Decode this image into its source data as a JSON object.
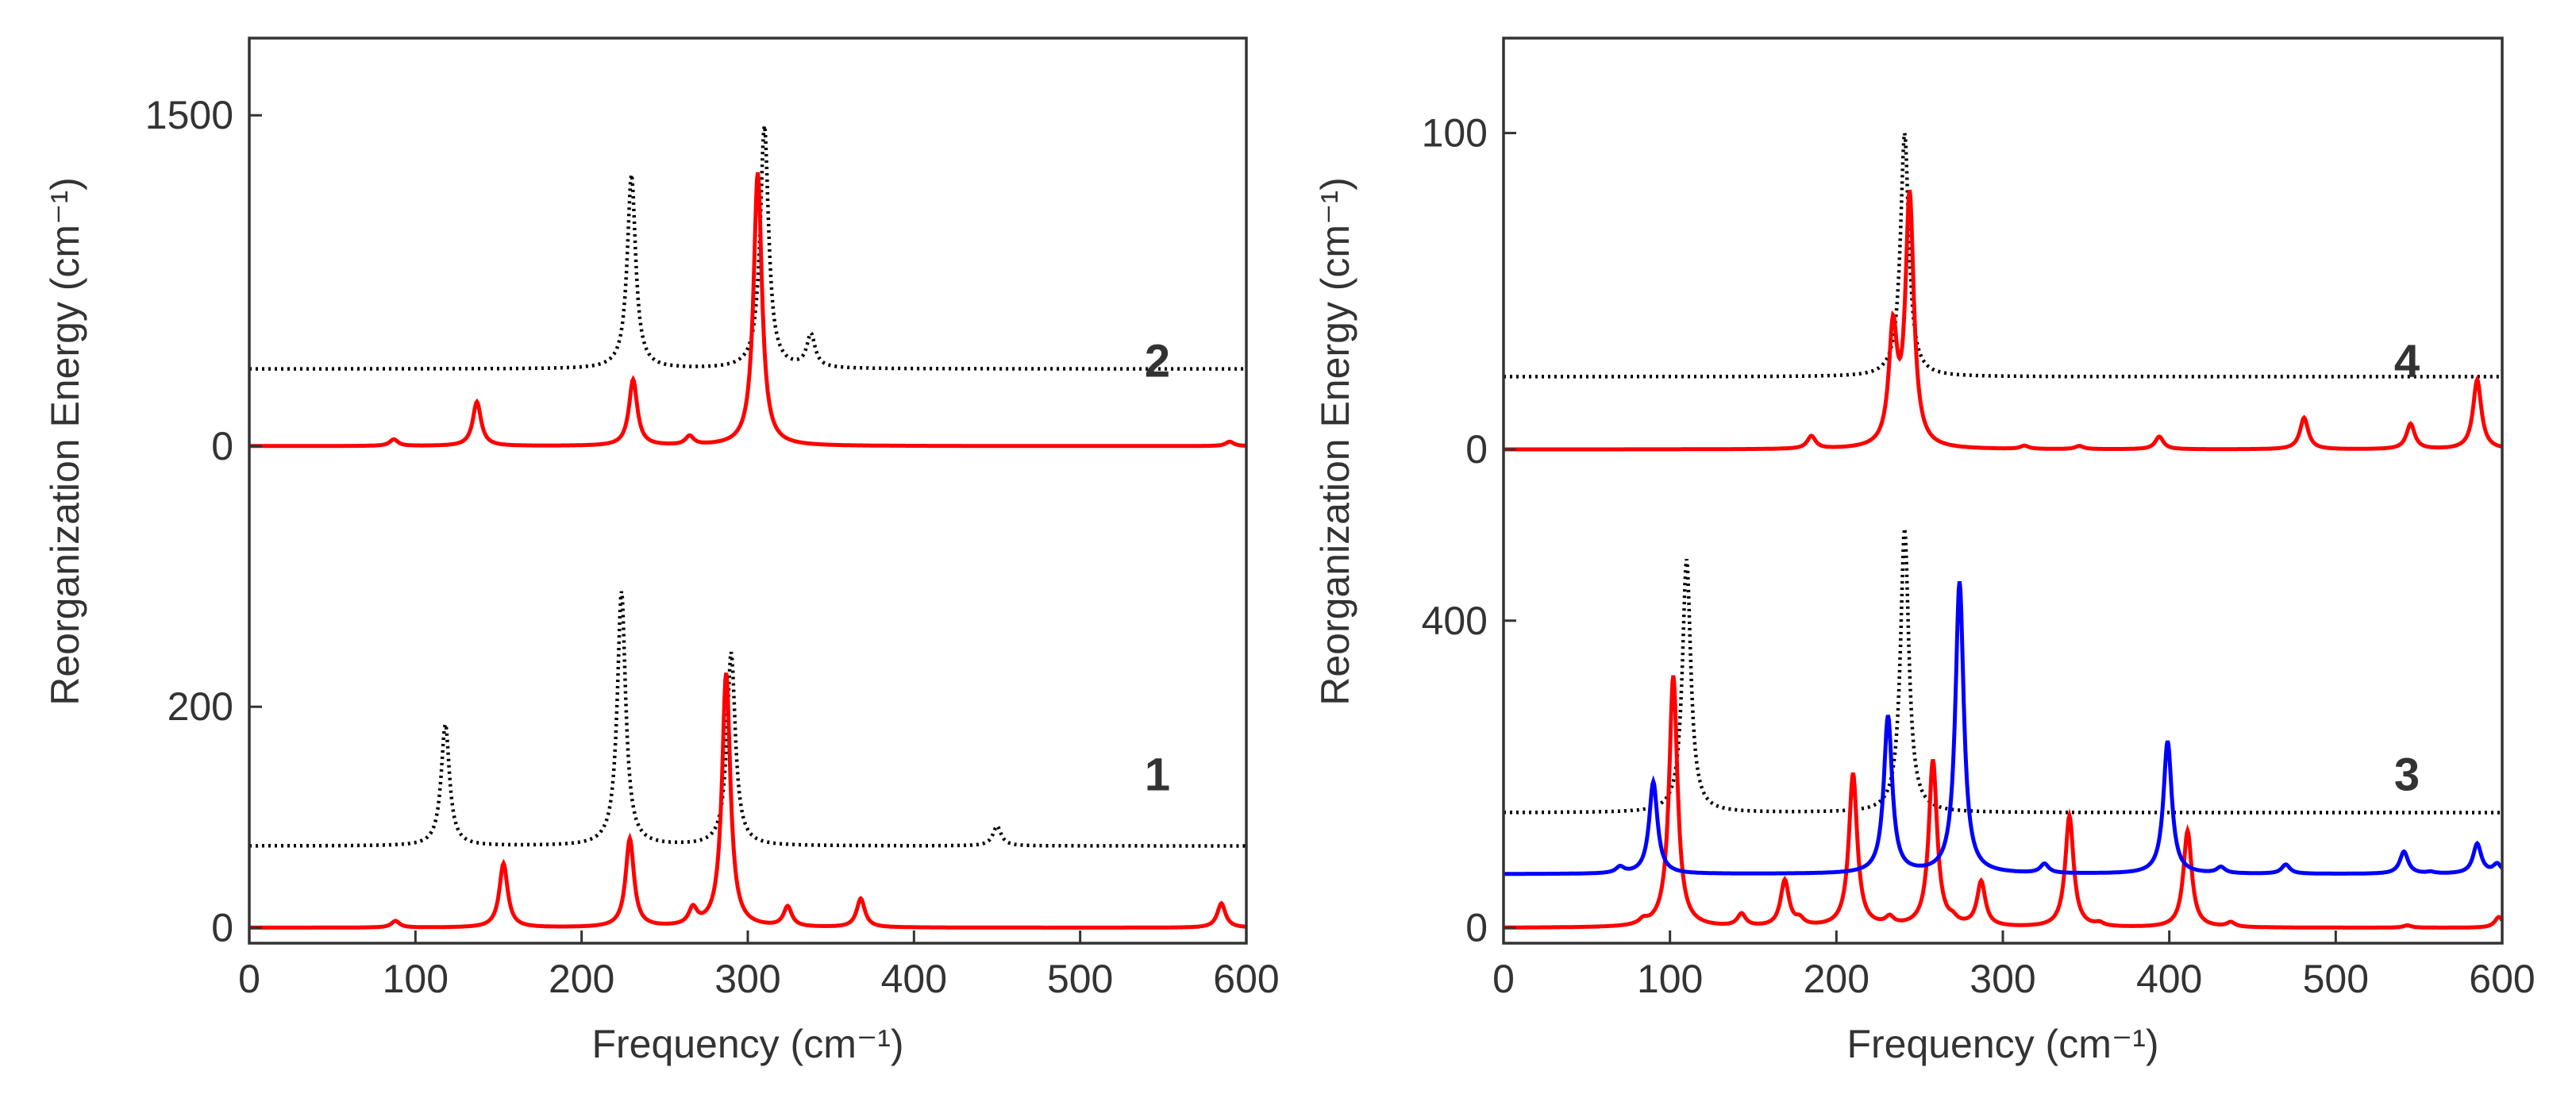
{
  "chart_data": [
    {
      "type": "line",
      "panel": "left",
      "xlabel": "Frequency (cm⁻¹)",
      "ylabel": "Reorganization Energy (cm⁻¹)",
      "xlim": [
        0,
        600
      ],
      "xticks": [
        0,
        100,
        200,
        300,
        400,
        500,
        600
      ],
      "sub_plots": [
        {
          "label": "2",
          "yticks": [
            {
              "value": 0,
              "label": "0"
            },
            {
              "value": 1500,
              "label": "1500"
            }
          ],
          "ylim": [
            -130,
            1850
          ],
          "series": [
            {
              "name": "spectrum-2-red",
              "color": "#ff0000",
              "style": "solid",
              "baseline": 0,
              "width": 3,
              "peaks": [
                [
                  87,
                  30
                ],
                [
                  137,
                  200
                ],
                [
                  231,
                  300
                ],
                [
                  265,
                  40
                ],
                [
                  306,
                  1240
                ],
                [
                  590,
                  20
                ]
              ]
            },
            {
              "name": "spectrum-2-dotted",
              "color": "#000000",
              "style": "dotted",
              "baseline": 350,
              "width": 3,
              "peaks": [
                [
                  230,
                  880
                ],
                [
                  310,
                  1100
                ],
                [
                  338,
                  150
                ]
              ]
            }
          ]
        },
        {
          "label": "1",
          "yticks": [
            {
              "value": 0,
              "label": "0"
            },
            {
              "value": 200,
              "label": "200"
            }
          ],
          "ylim": [
            -14,
            410
          ],
          "series": [
            {
              "name": "spectrum-1-red",
              "color": "#ff0000",
              "style": "solid",
              "baseline": 0,
              "width": 3,
              "peaks": [
                [
                  88,
                  6
                ],
                [
                  153,
                  58
                ],
                [
                  229,
                  80
                ],
                [
                  267,
                  15
                ],
                [
                  287,
                  230
                ],
                [
                  324,
                  18
                ],
                [
                  368,
                  26
                ],
                [
                  585,
                  22
                ]
              ]
            },
            {
              "name": "spectrum-1-dotted",
              "color": "#000000",
              "style": "dotted",
              "baseline": 74,
              "width": 3,
              "peaks": [
                [
                  118,
                  110
                ],
                [
                  224,
                  230
                ],
                [
                  290,
                  175
                ],
                [
                  450,
                  18
                ]
              ]
            }
          ]
        }
      ]
    },
    {
      "type": "line",
      "panel": "right",
      "xlabel": "Frequency (cm⁻¹)",
      "ylabel": "Reorganization Energy (cm⁻¹)",
      "xlim": [
        0,
        600
      ],
      "xticks": [
        0,
        100,
        200,
        300,
        400,
        500,
        600
      ],
      "sub_plots": [
        {
          "label": "4",
          "yticks": [
            {
              "value": 0,
              "label": "0"
            },
            {
              "value": 100,
              "label": "100"
            }
          ],
          "ylim": [
            -8,
            130
          ],
          "series": [
            {
              "name": "spectrum-4-red",
              "color": "#ff0000",
              "style": "solid",
              "baseline": 0,
              "width": 3,
              "peaks": [
                [
                  185,
                  4
                ],
                [
                  234,
                  36
                ],
                [
                  244,
                  79
                ],
                [
                  313,
                  1
                ],
                [
                  346,
                  1
                ],
                [
                  394,
                  4
                ],
                [
                  481,
                  10
                ],
                [
                  545,
                  8
                ],
                [
                  585,
                  22
                ]
              ]
            },
            {
              "name": "spectrum-4-dotted",
              "color": "#000000",
              "style": "dotted",
              "baseline": 23,
              "width": 3,
              "peaks": [
                [
                  241,
                  77
                ]
              ]
            }
          ]
        },
        {
          "label": "3",
          "yticks": [
            {
              "value": 0,
              "label": "0"
            },
            {
              "value": 400,
              "label": "400"
            }
          ],
          "ylim": [
            -20,
            590
          ],
          "series": [
            {
              "name": "spectrum-3-red",
              "color": "#ff0000",
              "style": "solid",
              "baseline": 0,
              "width": 3,
              "peaks": [
                [
                  84,
                  6
                ],
                [
                  102,
                  328
                ],
                [
                  143,
                  16
                ],
                [
                  169,
                  60
                ],
                [
                  178,
                  8
                ],
                [
                  210,
                  200
                ],
                [
                  232,
                  10
                ],
                [
                  258,
                  217
                ],
                [
                  270,
                  6
                ],
                [
                  287,
                  58
                ],
                [
                  340,
                  145
                ],
                [
                  358,
                  4
                ],
                [
                  411,
                  126
                ],
                [
                  437,
                  6
                ],
                [
                  543,
                  3
                ],
                [
                  598,
                  14
                ]
              ]
            },
            {
              "name": "spectrum-3-blue",
              "color": "#0000ff",
              "style": "solid",
              "baseline": 70,
              "width": 3,
              "peaks": [
                [
                  70,
                  8
                ],
                [
                  90,
                  120
                ],
                [
                  231,
                  205
                ],
                [
                  274,
                  380
                ],
                [
                  325,
                  12
                ],
                [
                  399,
                  173
                ],
                [
                  431,
                  8
                ],
                [
                  470,
                  12
                ],
                [
                  541,
                  29
                ],
                [
                  557,
                  2
                ],
                [
                  585,
                  39
                ],
                [
                  597,
                  12
                ]
              ]
            },
            {
              "name": "spectrum-3-dotted",
              "color": "#000000",
              "style": "dotted",
              "baseline": 150,
              "width": 3,
              "peaks": [
                [
                  110,
                  330
                ],
                [
                  241,
                  370
                ]
              ]
            }
          ]
        }
      ]
    }
  ]
}
